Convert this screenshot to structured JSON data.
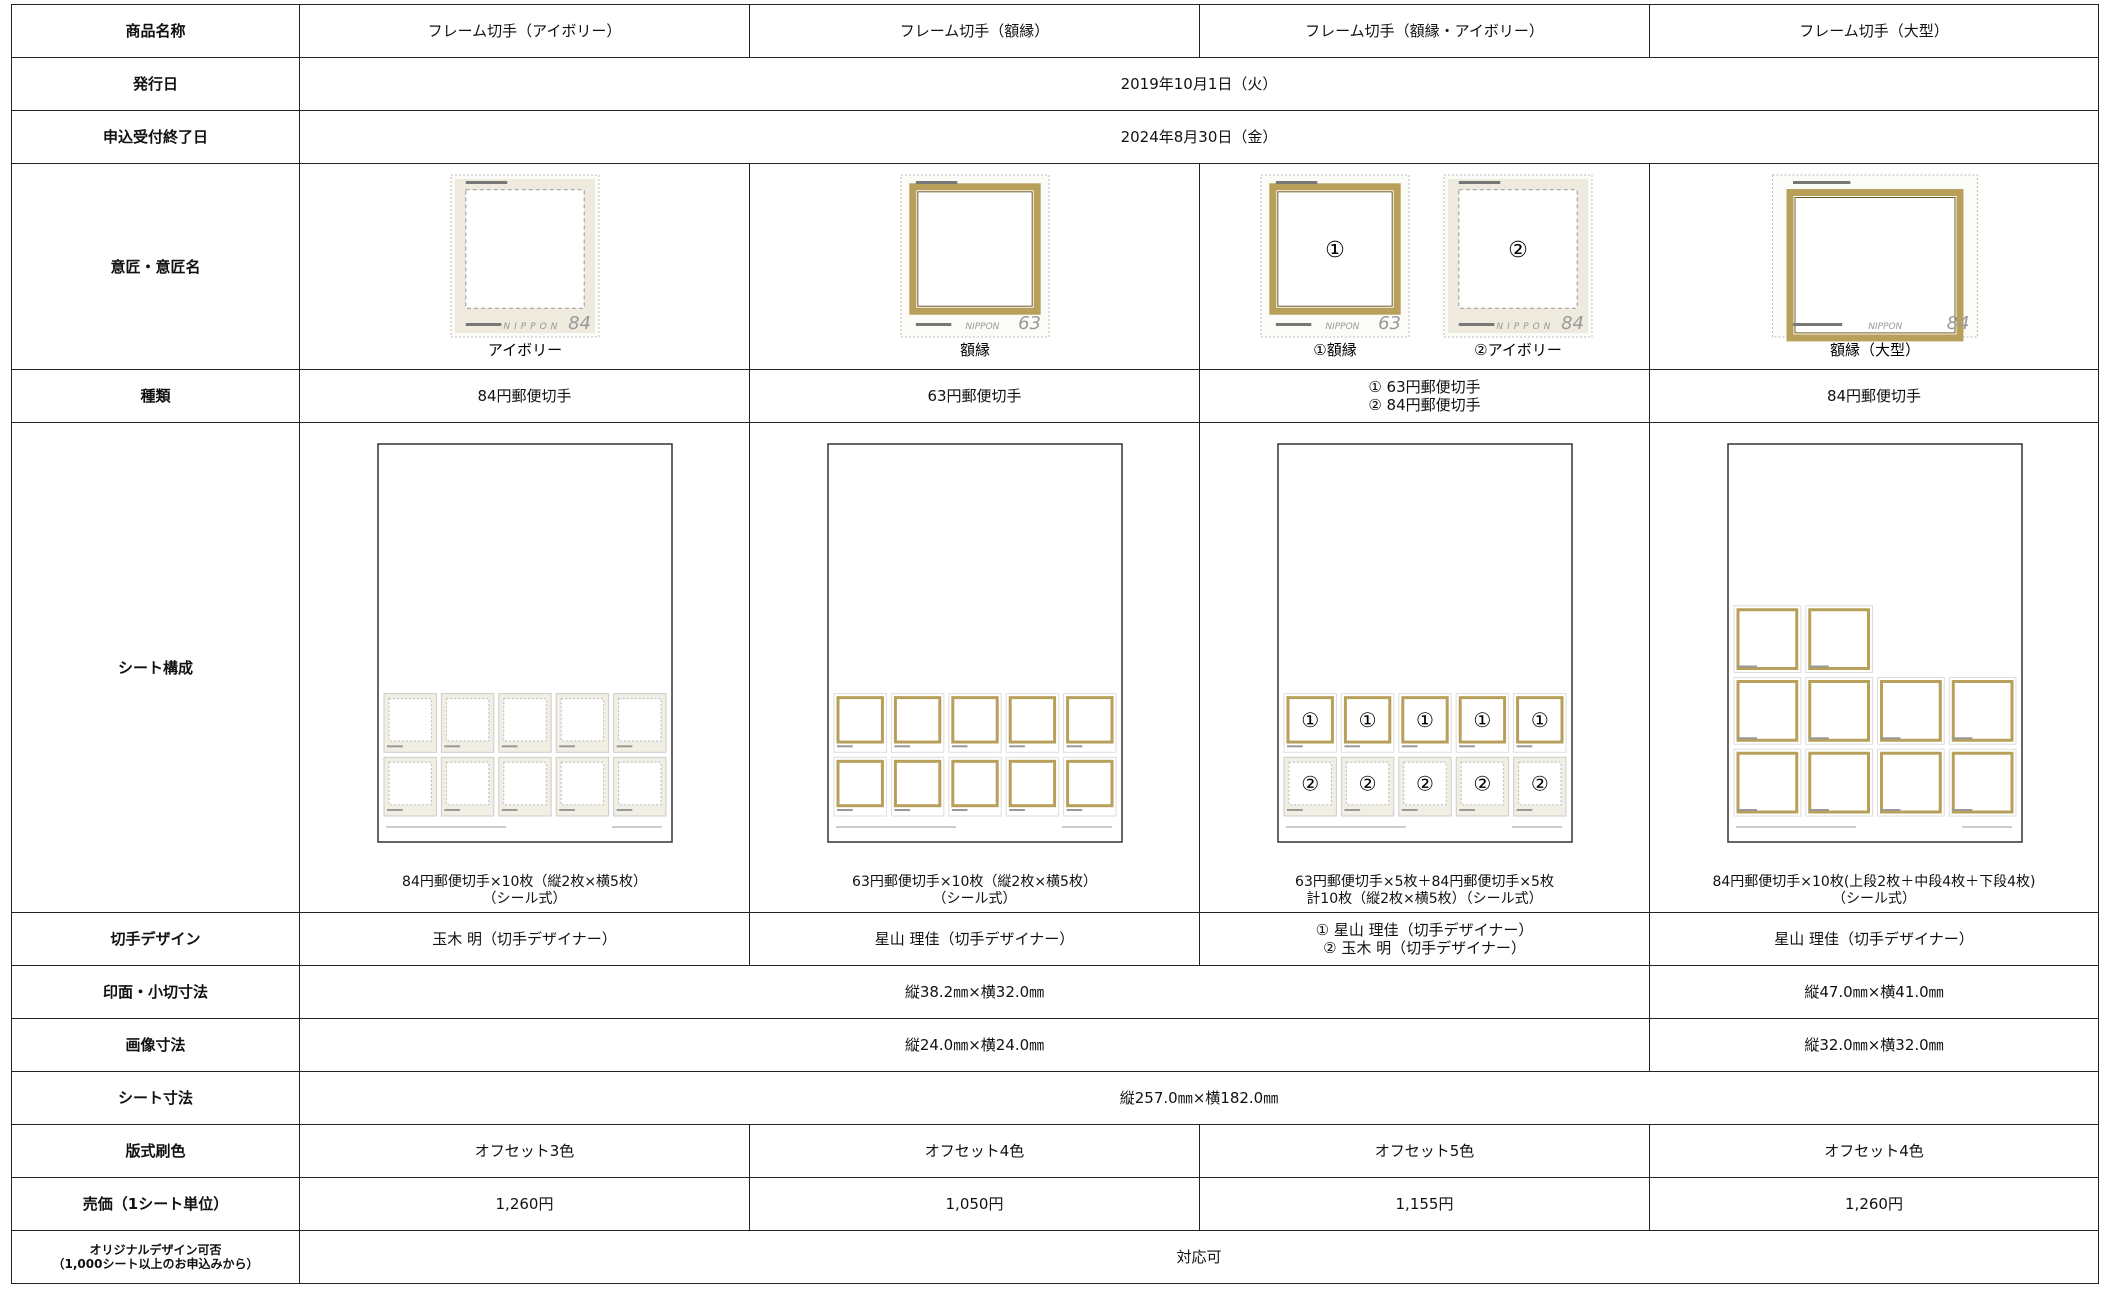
{
  "table": {
    "rows": [
      {
        "label": "商品名称",
        "cells": [
          "フレーム切手（アイボリー）",
          "フレーム切手（額縁）",
          "フレーム切手（額縁・アイボリー）",
          "フレーム切手（大型）"
        ]
      },
      {
        "label": "発行日",
        "cells": [
          "2019年10月1日（火）"
        ]
      },
      {
        "label": "申込受付終了日",
        "cells": [
          "2024年8月30日（金）"
        ]
      },
      {
        "label": "意匠・意匠名",
        "cells": [
          {
            "stamps": [
              {
                "style": "ivory",
                "country": "NIPPON",
                "denomination": "84",
                "caption": "アイボリー"
              }
            ]
          },
          {
            "stamps": [
              {
                "style": "gold",
                "country": "NIPPON",
                "denomination": "63",
                "caption": "額縁"
              }
            ]
          },
          {
            "stamps": [
              {
                "style": "gold",
                "mark": "①",
                "country": "NIPPON",
                "denomination": "63",
                "caption": "①額縁"
              },
              {
                "style": "ivory",
                "mark": "②",
                "country": "NIPPON",
                "denomination": "84",
                "caption": "②アイボリー"
              }
            ]
          },
          {
            "stamps": [
              {
                "style": "large",
                "country": "NIPPON",
                "denomination": "84",
                "caption": "額縁（大型）"
              }
            ]
          }
        ]
      },
      {
        "label": "種類",
        "cells": [
          [
            "84円郵便切手"
          ],
          [
            "63円郵便切手"
          ],
          [
            "① 63円郵便切手",
            "② 84円郵便切手"
          ],
          [
            "84円郵便切手"
          ]
        ]
      },
      {
        "label": "シート構成",
        "cells": [
          {
            "layout": [
              5,
              5
            ],
            "style": "ivory",
            "lines": [
              "84円郵便切手×10枚（縦2枚×横5枚）",
              "（シール式）"
            ]
          },
          {
            "layout": [
              5,
              5
            ],
            "style": "gold",
            "lines": [
              "63円郵便切手×10枚（縦2枚×横5枚）",
              "（シール式）"
            ]
          },
          {
            "layout": [
              5,
              5
            ],
            "style": "mixed",
            "marks": [
              "①",
              "②"
            ],
            "lines": [
              "63円郵便切手×5枚＋84円郵便切手×5枚",
              "計10枚（縦2枚×横5枚）（シール式）"
            ]
          },
          {
            "layout": [
              2,
              4,
              4
            ],
            "style": "gold",
            "lines": [
              "84円郵便切手×10枚(上段2枚＋中段4枚＋下段4枚)",
              "（シール式）"
            ]
          }
        ]
      },
      {
        "label": "切手デザイン",
        "cells": [
          [
            "玉木 明（切手デザイナー）"
          ],
          [
            "星山 理佳（切手デザイナー）"
          ],
          [
            "① 星山 理佳（切手デザイナー）",
            "② 玉木 明（切手デザイナー）"
          ],
          [
            "星山 理佳（切手デザイナー）"
          ]
        ]
      },
      {
        "label": "印面・小切寸法",
        "cells": [
          "縦38.2㎜×横32.0㎜",
          "縦47.0㎜×横41.0㎜"
        ]
      },
      {
        "label": "画像寸法",
        "cells": [
          "縦24.0㎜×横24.0㎜",
          "縦32.0㎜×横32.0㎜"
        ]
      },
      {
        "label": "シート寸法",
        "cells": [
          "縦257.0㎜×横182.0㎜"
        ]
      },
      {
        "label": "版式刷色",
        "cells": [
          "オフセット3色",
          "オフセット4色",
          "オフセット5色",
          "オフセット4色"
        ]
      },
      {
        "label": "売価（1シート単位）",
        "cells": [
          "1,260円",
          "1,050円",
          "1,155円",
          "1,260円"
        ]
      },
      {
        "label": [
          "オリジナルデザイン可否",
          "（1,000シート以上のお申込みから）"
        ],
        "cells": [
          "対応可"
        ]
      }
    ]
  }
}
